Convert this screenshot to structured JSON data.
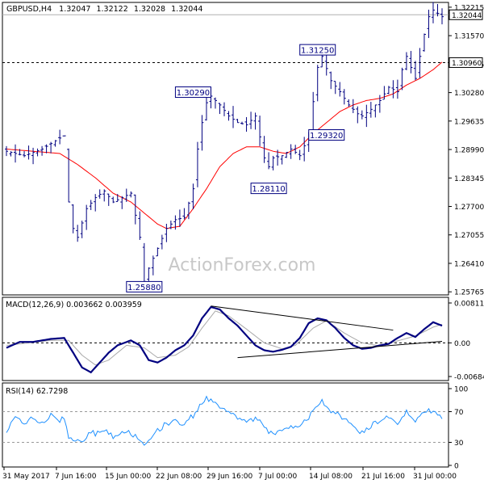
{
  "chart_data": [
    {
      "type": "line",
      "panel": "price",
      "header": {
        "symbol": "GBPUSD,H4",
        "open": "1.32047",
        "high": "1.32122",
        "low": "1.32028",
        "close": "1.32044"
      },
      "watermark": "ActionForex.com",
      "y_ticks": [
        "1.32215",
        "1.31570",
        "1.30925",
        "1.30280",
        "1.29635",
        "1.28990",
        "1.28345",
        "1.27700",
        "1.27055",
        "1.26410",
        "1.25765"
      ],
      "ylim": [
        1.2575,
        1.3225
      ],
      "price_tag": "1.32044",
      "price_level": 1.32044,
      "hline_label": "1.30960",
      "hline_value": 1.3096,
      "annotations": [
        {
          "text": "1.30290",
          "value": 1.3029,
          "x_bar": 42
        },
        {
          "text": "1.31250",
          "value": 1.3125,
          "x_bar": 70
        },
        {
          "text": "1.29320",
          "value": 1.2932,
          "x_bar": 72
        },
        {
          "text": "1.28110",
          "value": 1.2811,
          "x_bar": 59
        },
        {
          "text": "1.25880",
          "value": 1.2588,
          "x_bar": 31
        }
      ],
      "series": [
        {
          "kind": "ohlc",
          "color": "#000080",
          "bars": 99,
          "anchors": [
            [
              0,
              1.2895
            ],
            [
              4,
              1.2885
            ],
            [
              8,
              1.29
            ],
            [
              12,
              1.2925
            ],
            [
              13,
              1.293
            ],
            [
              14,
              1.278
            ],
            [
              15,
              1.272
            ],
            [
              16,
              1.27
            ],
            [
              18,
              1.2765
            ],
            [
              20,
              1.279
            ],
            [
              22,
              1.2805
            ],
            [
              24,
              1.278
            ],
            [
              26,
              1.279
            ],
            [
              28,
              1.28
            ],
            [
              30,
              1.27
            ],
            [
              31,
              1.26
            ],
            [
              32,
              1.263
            ],
            [
              34,
              1.2675
            ],
            [
              36,
              1.272
            ],
            [
              38,
              1.274
            ],
            [
              40,
              1.2745
            ],
            [
              42,
              1.281
            ],
            [
              43,
              1.29
            ],
            [
              44,
              1.296
            ],
            [
              45,
              1.3005
            ],
            [
              46,
              1.302
            ],
            [
              48,
              1.3
            ],
            [
              50,
              1.2975
            ],
            [
              52,
              1.296
            ],
            [
              54,
              1.2955
            ],
            [
              56,
              1.2975
            ],
            [
              58,
              1.288
            ],
            [
              59,
              1.286
            ],
            [
              60,
              1.288
            ],
            [
              62,
              1.2885
            ],
            [
              64,
              1.29
            ],
            [
              66,
              1.2885
            ],
            [
              68,
              1.293
            ],
            [
              70,
              1.3085
            ],
            [
              71,
              1.311
            ],
            [
              73,
              1.3055
            ],
            [
              75,
              1.303
            ],
            [
              77,
              1.3
            ],
            [
              79,
              1.298
            ],
            [
              80,
              1.2975
            ],
            [
              82,
              1.299
            ],
            [
              84,
              1.301
            ],
            [
              86,
              1.304
            ],
            [
              88,
              1.303
            ],
            [
              89,
              1.308
            ],
            [
              90,
              1.311
            ],
            [
              92,
              1.306
            ],
            [
              94,
              1.316
            ],
            [
              95,
              1.32
            ],
            [
              96,
              1.3215
            ],
            [
              98,
              1.32
            ]
          ]
        },
        {
          "kind": "ma",
          "color": "#ff0000",
          "anchors": [
            [
              0,
              1.29
            ],
            [
              6,
              1.2895
            ],
            [
              12,
              1.289
            ],
            [
              16,
              1.2865
            ],
            [
              20,
              1.2835
            ],
            [
              24,
              1.28
            ],
            [
              28,
              1.278
            ],
            [
              31,
              1.2755
            ],
            [
              34,
              1.273
            ],
            [
              36,
              1.272
            ],
            [
              39,
              1.2725
            ],
            [
              42,
              1.2765
            ],
            [
              45,
              1.281
            ],
            [
              48,
              1.286
            ],
            [
              51,
              1.289
            ],
            [
              54,
              1.2905
            ],
            [
              57,
              1.2905
            ],
            [
              60,
              1.2895
            ],
            [
              63,
              1.289
            ],
            [
              66,
              1.2905
            ],
            [
              69,
              1.2935
            ],
            [
              72,
              1.296
            ],
            [
              75,
              1.2985
            ],
            [
              78,
              1.3
            ],
            [
              81,
              1.301
            ],
            [
              84,
              1.3015
            ],
            [
              87,
              1.3025
            ],
            [
              90,
              1.3045
            ],
            [
              93,
              1.306
            ],
            [
              96,
              1.308
            ],
            [
              98,
              1.3097
            ]
          ]
        }
      ]
    },
    {
      "type": "line",
      "panel": "macd",
      "title": "MACD(12,26,9) 0.003662 0.003959",
      "y_ticks": [
        "0.008118",
        "0.00",
        "-0.006844"
      ],
      "ylim": [
        -0.006844,
        0.008118
      ],
      "series": [
        {
          "name": "MACD",
          "color": "#000080",
          "anchors": [
            [
              0,
              -0.001
            ],
            [
              3,
              0.0002
            ],
            [
              6,
              0.0002
            ],
            [
              10,
              0.0008
            ],
            [
              13,
              0.001
            ],
            [
              15,
              -0.002
            ],
            [
              17,
              -0.005
            ],
            [
              19,
              -0.006
            ],
            [
              21,
              -0.004
            ],
            [
              23,
              -0.002
            ],
            [
              25,
              -0.0005
            ],
            [
              28,
              0.0005
            ],
            [
              30,
              -0.0005
            ],
            [
              32,
              -0.0035
            ],
            [
              34,
              -0.004
            ],
            [
              36,
              -0.003
            ],
            [
              38,
              -0.0015
            ],
            [
              40,
              -0.0005
            ],
            [
              42,
              0.0015
            ],
            [
              44,
              0.005
            ],
            [
              46,
              0.0073
            ],
            [
              48,
              0.0068
            ],
            [
              50,
              0.005
            ],
            [
              52,
              0.0035
            ],
            [
              54,
              0.0015
            ],
            [
              56,
              -0.0005
            ],
            [
              58,
              -0.0015
            ],
            [
              60,
              -0.0018
            ],
            [
              62,
              -0.0014
            ],
            [
              64,
              -0.0008
            ],
            [
              66,
              0.001
            ],
            [
              68,
              0.004
            ],
            [
              70,
              0.005
            ],
            [
              72,
              0.0046
            ],
            [
              74,
              0.003
            ],
            [
              76,
              0.001
            ],
            [
              78,
              -0.0005
            ],
            [
              80,
              -0.0012
            ],
            [
              82,
              -0.001
            ],
            [
              84,
              -0.0005
            ],
            [
              86,
              -0.0002
            ],
            [
              88,
              0.001
            ],
            [
              90,
              0.002
            ],
            [
              92,
              0.0012
            ],
            [
              94,
              0.0028
            ],
            [
              96,
              0.0042
            ],
            [
              98,
              0.0035
            ]
          ]
        },
        {
          "name": "Signal",
          "color": "#a9a9a9",
          "anchors": [
            [
              0,
              -0.0005
            ],
            [
              5,
              0.0
            ],
            [
              10,
              0.0005
            ],
            [
              14,
              0.0005
            ],
            [
              17,
              -0.0025
            ],
            [
              20,
              -0.0045
            ],
            [
              23,
              -0.0035
            ],
            [
              27,
              -0.0005
            ],
            [
              31,
              -0.001
            ],
            [
              34,
              -0.003
            ],
            [
              38,
              -0.0025
            ],
            [
              41,
              -0.0008
            ],
            [
              44,
              0.003
            ],
            [
              47,
              0.0065
            ],
            [
              50,
              0.0055
            ],
            [
              54,
              0.0028
            ],
            [
              58,
              0.0
            ],
            [
              62,
              -0.0012
            ],
            [
              65,
              -0.0005
            ],
            [
              69,
              0.003
            ],
            [
              72,
              0.0045
            ],
            [
              76,
              0.002
            ],
            [
              80,
              0.0
            ],
            [
              84,
              -0.0006
            ],
            [
              88,
              0.0004
            ],
            [
              92,
              0.0014
            ],
            [
              96,
              0.0032
            ],
            [
              98,
              0.0038
            ]
          ]
        }
      ],
      "trendlines": [
        {
          "from": [
            46,
            0.0075
          ],
          "to": [
            87,
            0.0026
          ]
        },
        {
          "from": [
            52,
            -0.003
          ],
          "to": [
            98,
            0.0003
          ]
        }
      ]
    },
    {
      "type": "line",
      "panel": "rsi",
      "title": "RSI(14) 62.7298",
      "y_ticks": [
        "100",
        "70",
        "30",
        "0"
      ],
      "ylim": [
        0,
        100
      ],
      "levels": [
        70,
        30
      ],
      "series": [
        {
          "name": "RSI(14)",
          "color": "#1e90ff",
          "anchors": [
            [
              0,
              45
            ],
            [
              2,
              60
            ],
            [
              4,
              55
            ],
            [
              6,
              62
            ],
            [
              8,
              55
            ],
            [
              10,
              65
            ],
            [
              12,
              58
            ],
            [
              13,
              62
            ],
            [
              14,
              38
            ],
            [
              15,
              30
            ],
            [
              17,
              32
            ],
            [
              19,
              45
            ],
            [
              20,
              40
            ],
            [
              22,
              48
            ],
            [
              24,
              38
            ],
            [
              26,
              45
            ],
            [
              28,
              42
            ],
            [
              30,
              35
            ],
            [
              31,
              28
            ],
            [
              32,
              35
            ],
            [
              34,
              45
            ],
            [
              36,
              55
            ],
            [
              38,
              58
            ],
            [
              40,
              55
            ],
            [
              42,
              65
            ],
            [
              44,
              82
            ],
            [
              45,
              88
            ],
            [
              46,
              85
            ],
            [
              48,
              78
            ],
            [
              50,
              70
            ],
            [
              52,
              60
            ],
            [
              54,
              55
            ],
            [
              56,
              62
            ],
            [
              58,
              50
            ],
            [
              60,
              40
            ],
            [
              62,
              48
            ],
            [
              64,
              52
            ],
            [
              66,
              50
            ],
            [
              68,
              62
            ],
            [
              70,
              80
            ],
            [
              71,
              85
            ],
            [
              72,
              75
            ],
            [
              74,
              68
            ],
            [
              76,
              60
            ],
            [
              78,
              50
            ],
            [
              80,
              42
            ],
            [
              82,
              52
            ],
            [
              84,
              58
            ],
            [
              86,
              62
            ],
            [
              88,
              55
            ],
            [
              90,
              70
            ],
            [
              92,
              58
            ],
            [
              94,
              70
            ],
            [
              96,
              72
            ],
            [
              98,
              62
            ]
          ]
        }
      ]
    }
  ],
  "x_axis": {
    "labels": [
      "31 May 2017",
      "7 Jun 16:00",
      "15 Jun 00:00",
      "22 Jun 08:00",
      "29 Jun 16:00",
      "7 Jul 00:00",
      "14 Jul 08:00",
      "21 Jul 16:00",
      "31 Jul 00:00"
    ]
  },
  "colors": {
    "bar": "#000080",
    "ma": "#ff0000",
    "macd": "#000080",
    "signal": "#a9a9a9",
    "rsi": "#1e90ff",
    "frame": "#000000",
    "dotted": "#000000"
  }
}
